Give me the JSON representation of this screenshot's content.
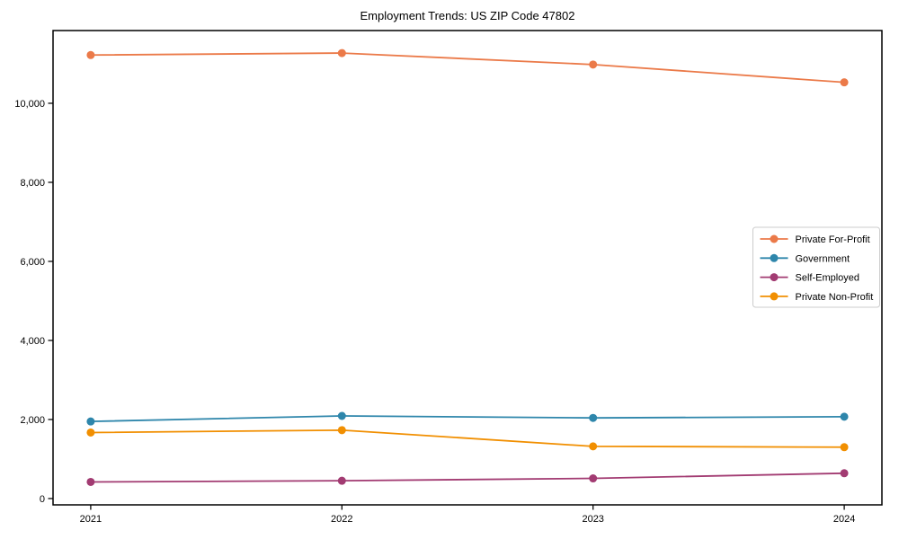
{
  "figure": {
    "background": "#ffffff",
    "axis_color": "#000000",
    "text_color": "#000000",
    "legend_border_color": "#cccccc"
  },
  "chart_data": {
    "type": "line",
    "title": "Employment Trends: US ZIP Code 47802",
    "xlabel": "",
    "ylabel": "",
    "x": [
      2021,
      2022,
      2023,
      2024
    ],
    "x_tick_labels": [
      "2021",
      "2022",
      "2023",
      "2024"
    ],
    "series": [
      {
        "name": "Private For-Profit",
        "color": "#EB7A49",
        "values": [
          11220,
          11270,
          10980,
          10530
        ]
      },
      {
        "name": "Government",
        "color": "#2E86AB",
        "values": [
          1950,
          2090,
          2040,
          2070
        ]
      },
      {
        "name": "Self-Employed",
        "color": "#A23B72",
        "values": [
          420,
          450,
          510,
          640
        ]
      },
      {
        "name": "Private Non-Profit",
        "color": "#F18F01",
        "values": [
          1670,
          1730,
          1320,
          1300
        ]
      }
    ],
    "xlim": [
      2020.85,
      2024.15
    ],
    "ylim": [
      -160,
      11840
    ],
    "yticks": [
      0,
      2000,
      4000,
      6000,
      8000,
      10000
    ],
    "ytick_labels": [
      "0",
      "2,000",
      "4,000",
      "6,000",
      "8,000",
      "10,000"
    ],
    "grid": false,
    "marker": "circle",
    "legend": {
      "position": "right-center",
      "entries": [
        "Private For-Profit",
        "Government",
        "Self-Employed",
        "Private Non-Profit"
      ]
    }
  }
}
